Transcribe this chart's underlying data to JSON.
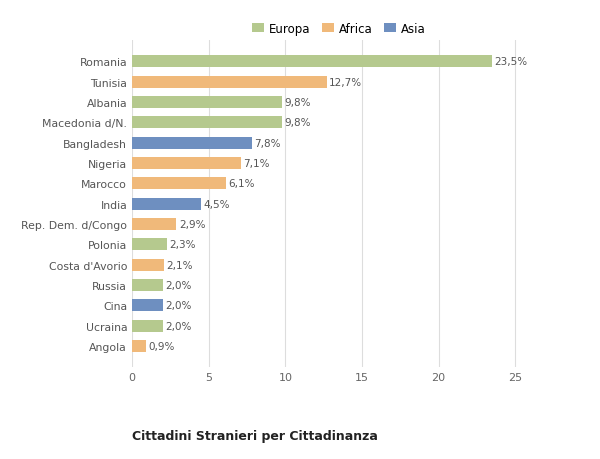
{
  "categories": [
    "Romania",
    "Tunisia",
    "Albania",
    "Macedonia d/N.",
    "Bangladesh",
    "Nigeria",
    "Marocco",
    "India",
    "Rep. Dem. d/Congo",
    "Polonia",
    "Costa d'Avorio",
    "Russia",
    "Cina",
    "Ucraina",
    "Angola"
  ],
  "values": [
    23.5,
    12.7,
    9.8,
    9.8,
    7.8,
    7.1,
    6.1,
    4.5,
    2.9,
    2.3,
    2.1,
    2.0,
    2.0,
    2.0,
    0.9
  ],
  "labels": [
    "23,5%",
    "12,7%",
    "9,8%",
    "9,8%",
    "7,8%",
    "7,1%",
    "6,1%",
    "4,5%",
    "2,9%",
    "2,3%",
    "2,1%",
    "2,0%",
    "2,0%",
    "2,0%",
    "0,9%"
  ],
  "continent": [
    "Europa",
    "Africa",
    "Europa",
    "Europa",
    "Asia",
    "Africa",
    "Africa",
    "Asia",
    "Africa",
    "Europa",
    "Africa",
    "Europa",
    "Asia",
    "Europa",
    "Africa"
  ],
  "colors": {
    "Europa": "#b5c98e",
    "Africa": "#f0b97a",
    "Asia": "#6e8fc0"
  },
  "title": "Cittadini Stranieri per Cittadinanza",
  "xlim": [
    0,
    27
  ],
  "xticks": [
    0,
    5,
    10,
    15,
    20,
    25
  ],
  "background_color": "#ffffff",
  "bar_height": 0.6,
  "grid_color": "#dddddd"
}
